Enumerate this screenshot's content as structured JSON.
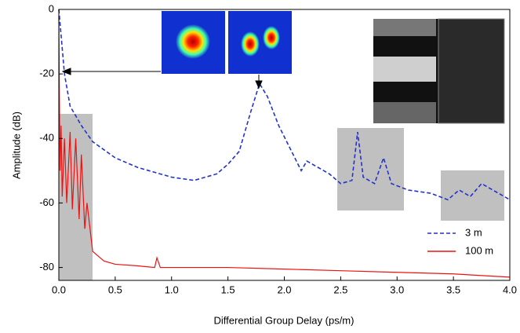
{
  "chart_data": {
    "type": "line",
    "x_label": "Differential Group Delay (ps/m)",
    "y_label": "Amplitude (dB)",
    "xlim": [
      0,
      4.0
    ],
    "ylim": [
      -84,
      0
    ],
    "xticks": [
      {
        "value": 0,
        "label": "0.0"
      },
      0.5,
      {
        "value": 1,
        "label": "1.0"
      },
      1.5,
      {
        "value": 2,
        "label": "2.0"
      },
      2.5,
      {
        "value": 3,
        "label": "3.0"
      },
      3.5,
      {
        "value": 4,
        "label": "4.0"
      }
    ],
    "yticks": [
      0,
      -20,
      -40,
      -60,
      -80
    ],
    "legend": "lower right",
    "series": [
      {
        "name": "3 m",
        "color": "#2233cc",
        "dash": true,
        "x": [
          0,
          0.05,
          0.1,
          0.2,
          0.3,
          0.5,
          0.7,
          1.0,
          1.2,
          1.4,
          1.5,
          1.6,
          1.7,
          1.78,
          1.85,
          1.95,
          2.05,
          2.15,
          2.2,
          2.3,
          2.4,
          2.5,
          2.6,
          2.65,
          2.7,
          2.8,
          2.88,
          2.95,
          3.1,
          3.3,
          3.45,
          3.55,
          3.65,
          3.75,
          3.85,
          4.0
        ],
        "values": [
          0,
          -20,
          -30,
          -36,
          -41,
          -46,
          -49,
          -52,
          -53,
          -51,
          -48,
          -44,
          -32,
          -23,
          -27,
          -36,
          -43,
          -50,
          -47,
          -49,
          -51,
          -54,
          -53,
          -38,
          -52,
          -54,
          -46,
          -54,
          -56,
          -57,
          -59,
          -56,
          -58,
          -54,
          -56,
          -59
        ]
      },
      {
        "name": "100 m",
        "color": "#ee1111",
        "dash": false,
        "x": [
          0,
          0.01,
          0.02,
          0.03,
          0.05,
          0.07,
          0.1,
          0.12,
          0.15,
          0.18,
          0.2,
          0.23,
          0.25,
          0.3,
          0.4,
          0.5,
          0.7,
          0.85,
          0.87,
          0.9,
          1.5,
          2.0,
          2.5,
          3.0,
          3.5,
          4.0
        ],
        "values": [
          -2,
          -50,
          -36,
          -58,
          -40,
          -60,
          -38,
          -62,
          -40,
          -65,
          -45,
          -68,
          -60,
          -75,
          -78,
          -79,
          -79.5,
          -80,
          -77,
          -80,
          -80,
          -80.5,
          -81,
          -81.5,
          -82,
          -83
        ]
      }
    ]
  }
}
